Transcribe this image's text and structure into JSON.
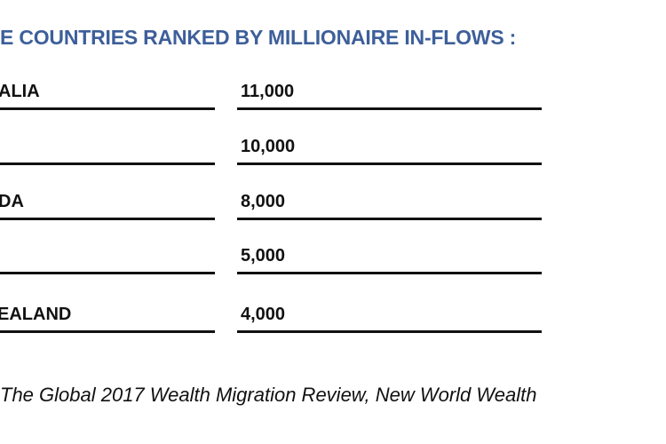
{
  "title": "E COUNTRIES RANKED BY MILLIONAIRE IN-FLOWS :",
  "rows": [
    {
      "country": "ALIA",
      "value": "11,000"
    },
    {
      "country": "",
      "value": "10,000"
    },
    {
      "country": "DA",
      "value": "8,000"
    },
    {
      "country": "",
      "value": "5,000"
    },
    {
      "country": "EALAND",
      "value": "4,000"
    }
  ],
  "source": "The Global 2017 Wealth Migration Review, New World Wealth",
  "colors": {
    "title": "#3d5f9a",
    "text": "#111111",
    "rule": "#111111"
  }
}
